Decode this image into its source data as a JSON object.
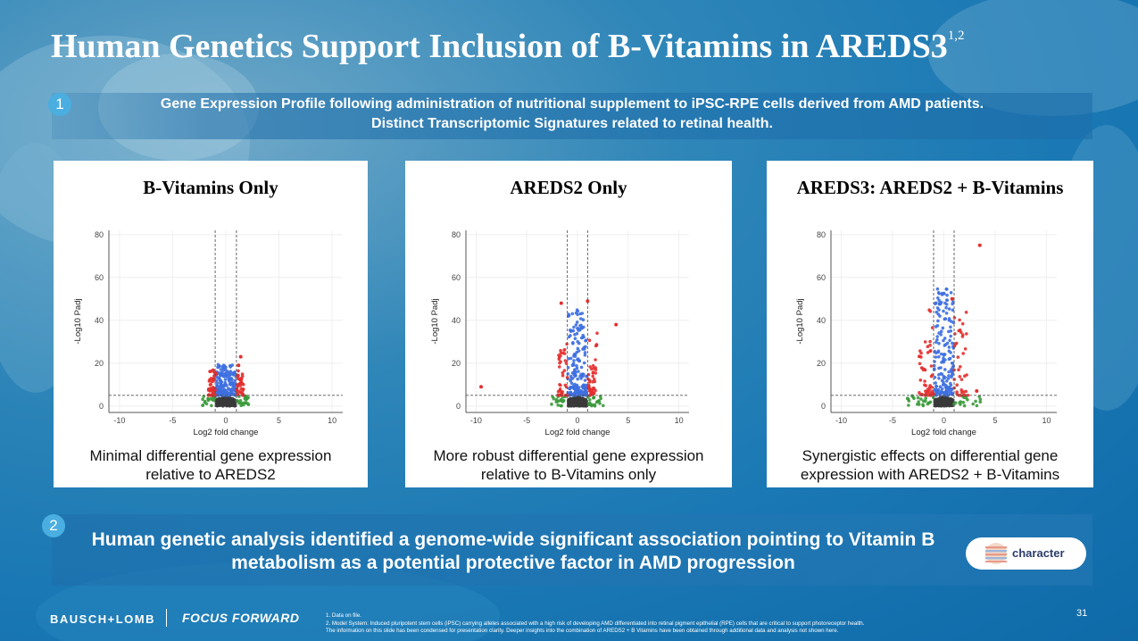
{
  "slide": {
    "title": "Human Genetics Support Inclusion of B-Vitamins in AREDS3",
    "title_sup": "1,2",
    "section1_number": "1",
    "section1_line1": "Gene Expression Profile following administration of nutritional supplement to iPSC-RPE cells derived from AMD patients.",
    "section1_line2": "Distinct Transcriptomic Signatures related to retinal health.",
    "section2_number": "2",
    "section2_text": "Human genetic analysis identified a genome-wide significant association pointing to Vitamin B metabolism as a potential protective factor in AMD progression",
    "partner_logo": "character",
    "brand": "BAUSCH+LOMB",
    "tagline": "FOCUS FORWARD",
    "footnote1": "1. Data on file.",
    "footnote2": "2. Model System: Induced pluripotent stem cells (iPSC) carrying alleles associated with a high risk of developing AMD differentiated  into retinal pigment epithelial (RPE) cells that are critical to support photoreceptor health.",
    "footnote3": "The information on this slide has been condensed for presentation clarity. Deeper insights into the combination of AREDS2 + B Vitamins have been obtained through additional data and analysis not shown here.",
    "page_number": "31"
  },
  "panels": [
    {
      "title": "B-Vitamins Only",
      "caption_line1": "Minimal differential gene expression",
      "caption_line2": "relative to AREDS2"
    },
    {
      "title": "AREDS2 Only",
      "caption_line1": "More robust differential gene expression",
      "caption_line2": "relative to B-Vitamins only"
    },
    {
      "title": "AREDS3: AREDS2 + B-Vitamins",
      "caption_line1": "Synergistic effects on differential gene",
      "caption_line2": "expression with AREDS2 + B-Vitamins"
    }
  ],
  "colors": {
    "up": "#e3302f",
    "blue": "#3d6fe0",
    "green": "#3a9a3a",
    "ns": "#3a3a3a"
  },
  "chart_data": [
    {
      "type": "scatter",
      "title": "B-Vitamins Only",
      "xlabel": "Log2 fold change",
      "ylabel": "-Log10 Padj",
      "xlim": [
        -11,
        11
      ],
      "ylim": [
        -3,
        82
      ],
      "xticks": [
        -10,
        -5,
        0,
        5,
        10
      ],
      "yticks": [
        0,
        20,
        40,
        60,
        80
      ],
      "x_thresholds": [
        -1,
        1
      ],
      "y_threshold": 5,
      "spread_x": 1.2,
      "max_blue": 15,
      "highlight_points": [
        [
          1.4,
          23
        ],
        [
          -0.9,
          15
        ],
        [
          1.2,
          19
        ]
      ]
    },
    {
      "type": "scatter",
      "title": "AREDS2 Only",
      "xlabel": "Log2 fold change",
      "ylabel": "-Log10 Padj",
      "xlim": [
        -11,
        11
      ],
      "ylim": [
        -3,
        82
      ],
      "xticks": [
        -10,
        -5,
        0,
        5,
        10
      ],
      "yticks": [
        0,
        20,
        40,
        60,
        80
      ],
      "x_thresholds": [
        -1,
        1
      ],
      "y_threshold": 5,
      "spread_x": 1.7,
      "max_blue": 40,
      "highlight_points": [
        [
          -1.6,
          48
        ],
        [
          1.0,
          49
        ],
        [
          3.8,
          38
        ],
        [
          -9.5,
          9
        ]
      ]
    },
    {
      "type": "scatter",
      "title": "AREDS3: AREDS2 + B-Vitamins",
      "xlabel": "Log2 fold change",
      "ylabel": "-Log10 Padj",
      "xlim": [
        -11,
        11
      ],
      "ylim": [
        -3,
        82
      ],
      "xticks": [
        -10,
        -5,
        0,
        5,
        10
      ],
      "yticks": [
        0,
        20,
        40,
        60,
        80
      ],
      "x_thresholds": [
        -1,
        1
      ],
      "y_threshold": 5,
      "spread_x": 2.6,
      "max_blue": 50,
      "highlight_points": [
        [
          3.5,
          75
        ],
        [
          0.8,
          50
        ],
        [
          3.2,
          7
        ]
      ]
    }
  ]
}
